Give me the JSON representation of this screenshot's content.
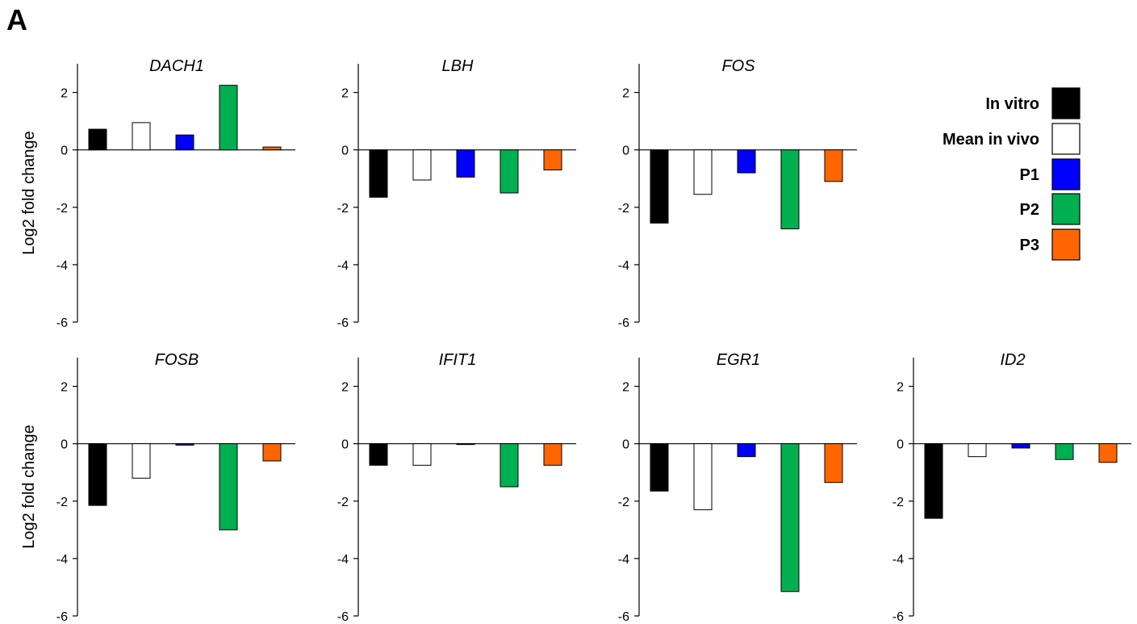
{
  "panel_label": "A",
  "chart_data": {
    "type": "bar",
    "ylabel": "Log2 fold change",
    "ylim": [
      -6,
      3
    ],
    "yticks": [
      2,
      0,
      -2,
      -4,
      -6
    ],
    "series": [
      {
        "name": "In vitro",
        "color": "#000000"
      },
      {
        "name": "Mean in vivo",
        "color": "#ffffff"
      },
      {
        "name": "P1",
        "color": "#0000ff"
      },
      {
        "name": "P2",
        "color": "#00b050"
      },
      {
        "name": "P3",
        "color": "#ff6600"
      }
    ],
    "legend_position": "right of top row",
    "panels": [
      {
        "gene": "DACH1",
        "values": [
          0.72,
          0.95,
          0.52,
          2.25,
          0.1
        ]
      },
      {
        "gene": "LBH",
        "values": [
          -1.65,
          -1.05,
          -0.95,
          -1.5,
          -0.7
        ]
      },
      {
        "gene": "FOS",
        "values": [
          -2.55,
          -1.55,
          -0.8,
          -2.75,
          -1.1
        ]
      },
      {
        "gene": "FOSB",
        "values": [
          -2.15,
          -1.2,
          -0.05,
          -3.0,
          -0.6
        ]
      },
      {
        "gene": "IFIT1",
        "values": [
          -0.75,
          -0.75,
          -0.02,
          -1.5,
          -0.75
        ]
      },
      {
        "gene": "EGR1",
        "values": [
          -1.65,
          -2.3,
          -0.45,
          -5.15,
          -1.35
        ]
      },
      {
        "gene": "ID2",
        "values": [
          -2.6,
          -0.45,
          -0.15,
          -0.55,
          -0.65
        ]
      }
    ]
  }
}
